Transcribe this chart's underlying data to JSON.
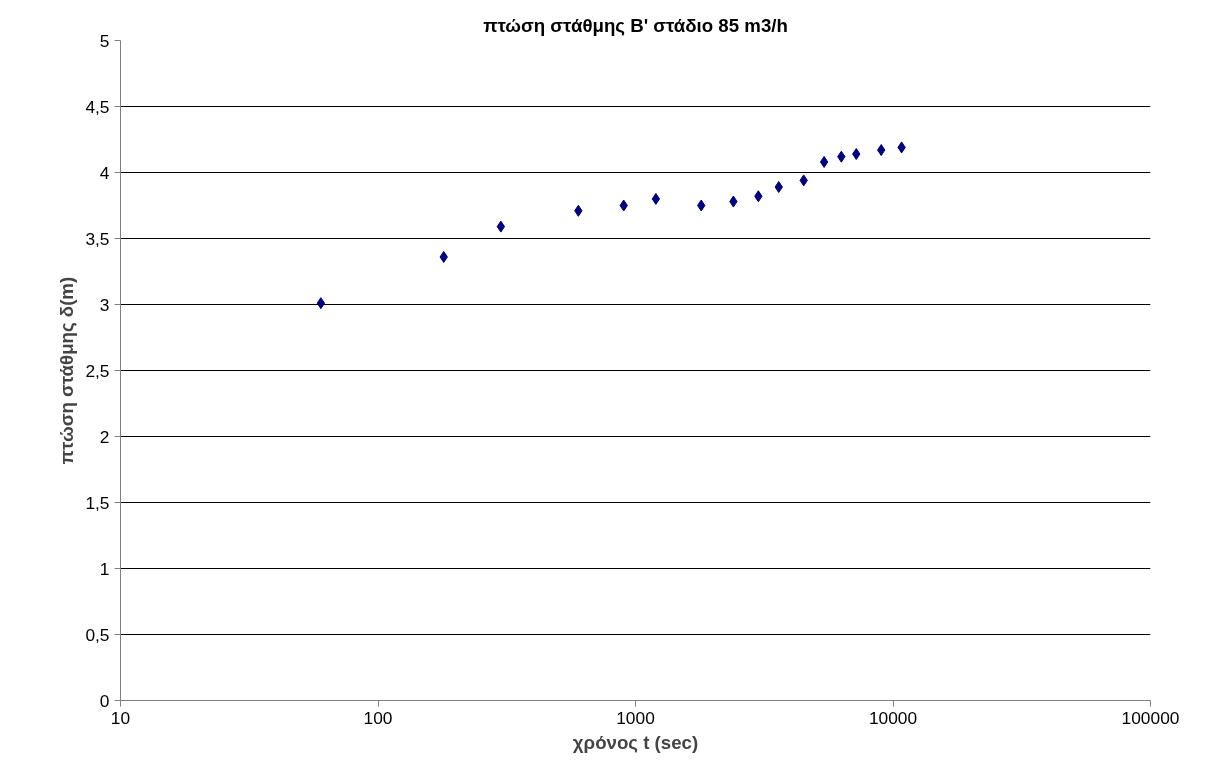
{
  "chart_data": {
    "type": "scatter",
    "title": "πτώση στάθμης Β' στάδιο 85 m3/h",
    "xlabel": "χρόνος t (sec)",
    "ylabel": "πτώση στάθμης δ(m)",
    "x": [
      60,
      180,
      300,
      600,
      900,
      1200,
      1800,
      2400,
      3000,
      3600,
      4500,
      5400,
      6300,
      7200,
      9000,
      10800
    ],
    "series": [
      {
        "color": "#000080",
        "values": [
          3.01,
          3.36,
          3.59,
          3.71,
          3.75,
          3.8,
          3.75,
          3.78,
          3.82,
          3.89,
          3.94,
          4.08,
          4.12,
          4.14,
          4.17,
          4.19
        ]
      }
    ],
    "log": "x",
    "xlim": [
      10,
      100000
    ],
    "xticks": [
      10,
      100,
      1000,
      10000,
      100000
    ],
    "ylim": [
      0,
      5
    ],
    "yticks": [
      0,
      {
        "value": 0.5,
        "label": "0,5"
      },
      1,
      {
        "value": 1.5,
        "label": "1,5"
      },
      2,
      {
        "value": 2.5,
        "label": "2,5"
      },
      3,
      {
        "value": 3.5,
        "label": "3,5"
      },
      4,
      {
        "value": 4.5,
        "label": "4,5"
      },
      5
    ],
    "grid": "y",
    "marker": "diamond"
  }
}
